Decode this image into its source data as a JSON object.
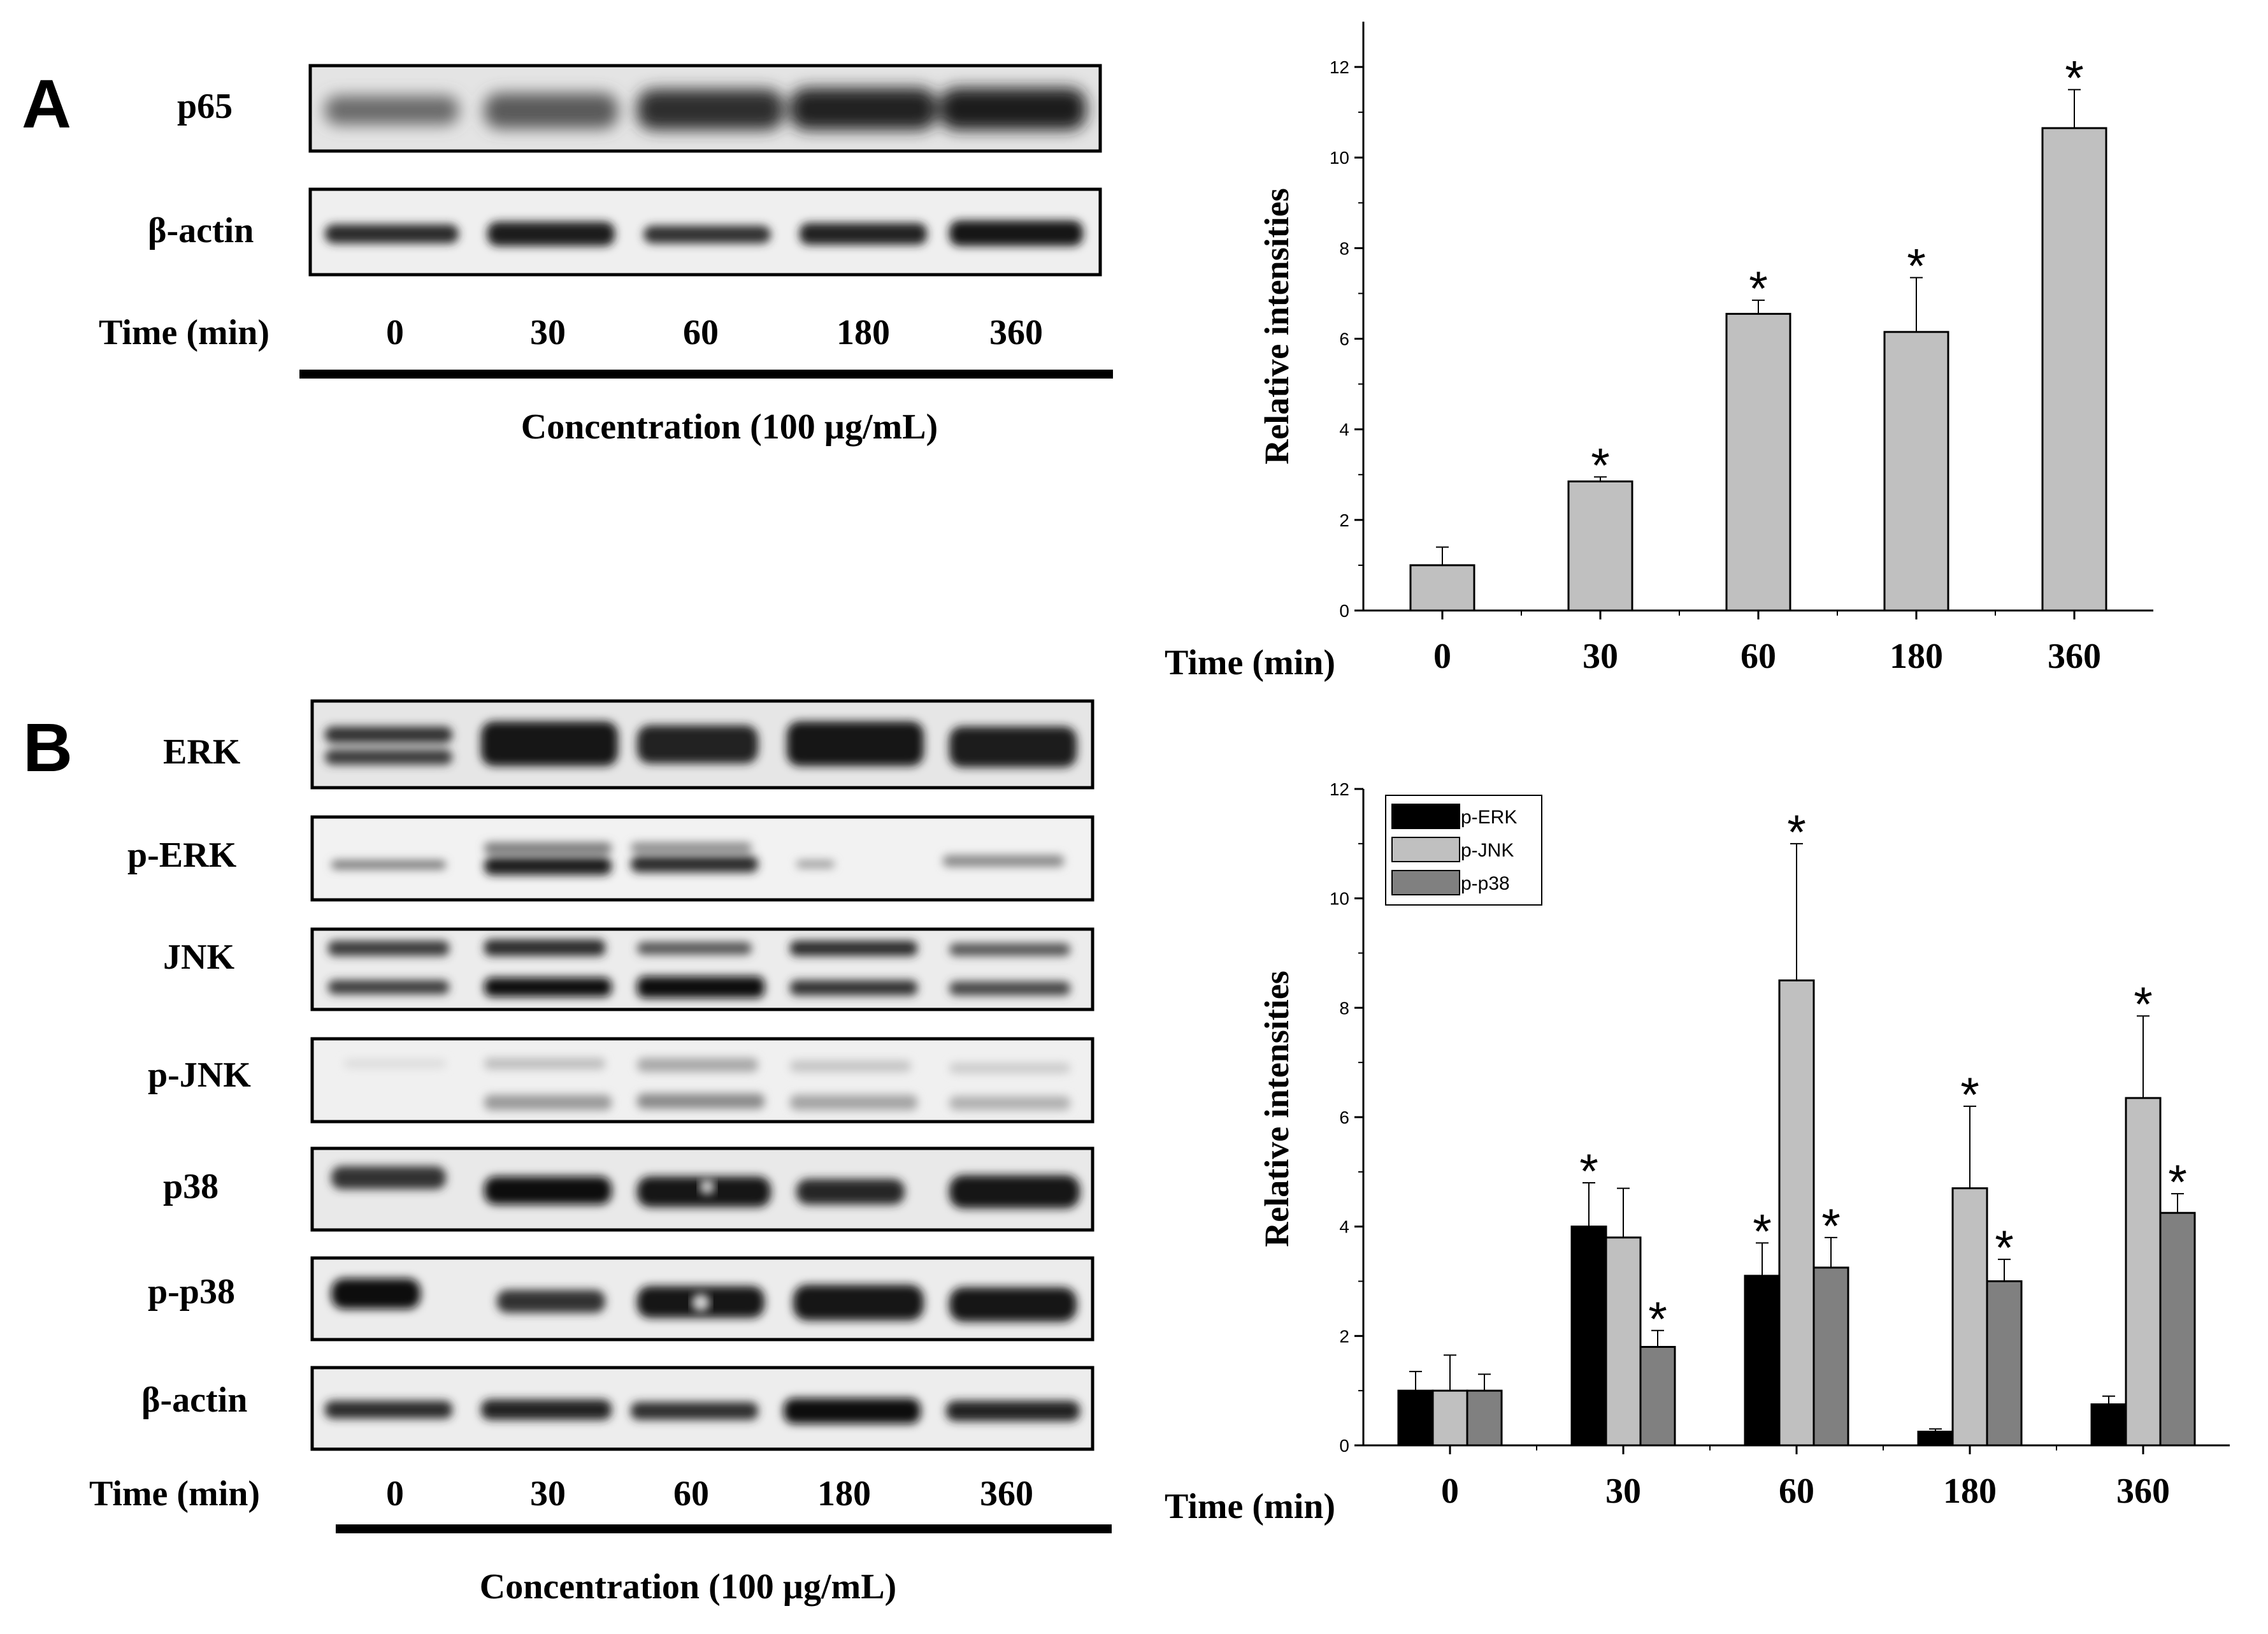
{
  "panels": {
    "a_letter": "A",
    "b_letter": "B"
  },
  "blot_a": {
    "rows": [
      "p65",
      "β-actin"
    ],
    "time_label": "Time (min)",
    "times": [
      "0",
      "30",
      "60",
      "180",
      "360"
    ],
    "concentration": "Concentration (100 µg/mL)"
  },
  "blot_b": {
    "rows": [
      "ERK",
      "p-ERK",
      "JNK",
      "p-JNK",
      "p38",
      "p-p38",
      "β-actin"
    ],
    "time_label": "Time (min)",
    "times": [
      "0",
      "30",
      "60",
      "180",
      "360"
    ],
    "concentration": "Concentration (100 µg/mL)"
  },
  "colors": {
    "bar_a": "#c0c0c0",
    "p_erk": "#000000",
    "p_jnk": "#c0c0c0",
    "p_p38": "#808080",
    "axis": "#000000"
  },
  "chart_data": [
    {
      "type": "bar",
      "categories": [
        "0",
        "30",
        "60",
        "180",
        "360"
      ],
      "series": [
        {
          "values": [
            1.0,
            2.85,
            6.55,
            6.15,
            10.65
          ],
          "errors": [
            0.4,
            0.1,
            0.3,
            1.2,
            0.85
          ]
        }
      ],
      "significant": [
        false,
        true,
        true,
        true,
        true
      ],
      "xlabel": "Time (min)",
      "ylabel": "Relative intensities",
      "ylim": [
        0,
        13
      ],
      "yticks": [
        "0",
        "2",
        "4",
        "6",
        "8",
        "10",
        "12"
      ],
      "legend": "none"
    },
    {
      "type": "bar",
      "categories": [
        "0",
        "30",
        "60",
        "180",
        "360"
      ],
      "series": [
        {
          "name": "p-ERK",
          "values": [
            1.0,
            4.0,
            3.1,
            0.25,
            0.75
          ],
          "errors": [
            0.35,
            0.8,
            0.6,
            0.05,
            0.15
          ],
          "significant": [
            false,
            true,
            true,
            false,
            false
          ]
        },
        {
          "name": "p-JNK",
          "values": [
            1.0,
            3.8,
            8.5,
            4.7,
            6.35
          ],
          "errors": [
            0.65,
            0.9,
            2.5,
            1.5,
            1.5
          ],
          "significant": [
            false,
            false,
            true,
            true,
            true
          ]
        },
        {
          "name": "p-p38",
          "values": [
            1.0,
            1.8,
            3.25,
            3.0,
            4.25
          ],
          "errors": [
            0.3,
            0.3,
            0.55,
            0.4,
            0.35
          ],
          "significant": [
            false,
            true,
            true,
            true,
            true
          ]
        }
      ],
      "xlabel": "Time (min)",
      "ylabel": "Relative intensities",
      "ylim": [
        0,
        12
      ],
      "yticks": [
        "0",
        "2",
        "4",
        "6",
        "8",
        "10",
        "12"
      ],
      "legend": "top-left"
    }
  ]
}
